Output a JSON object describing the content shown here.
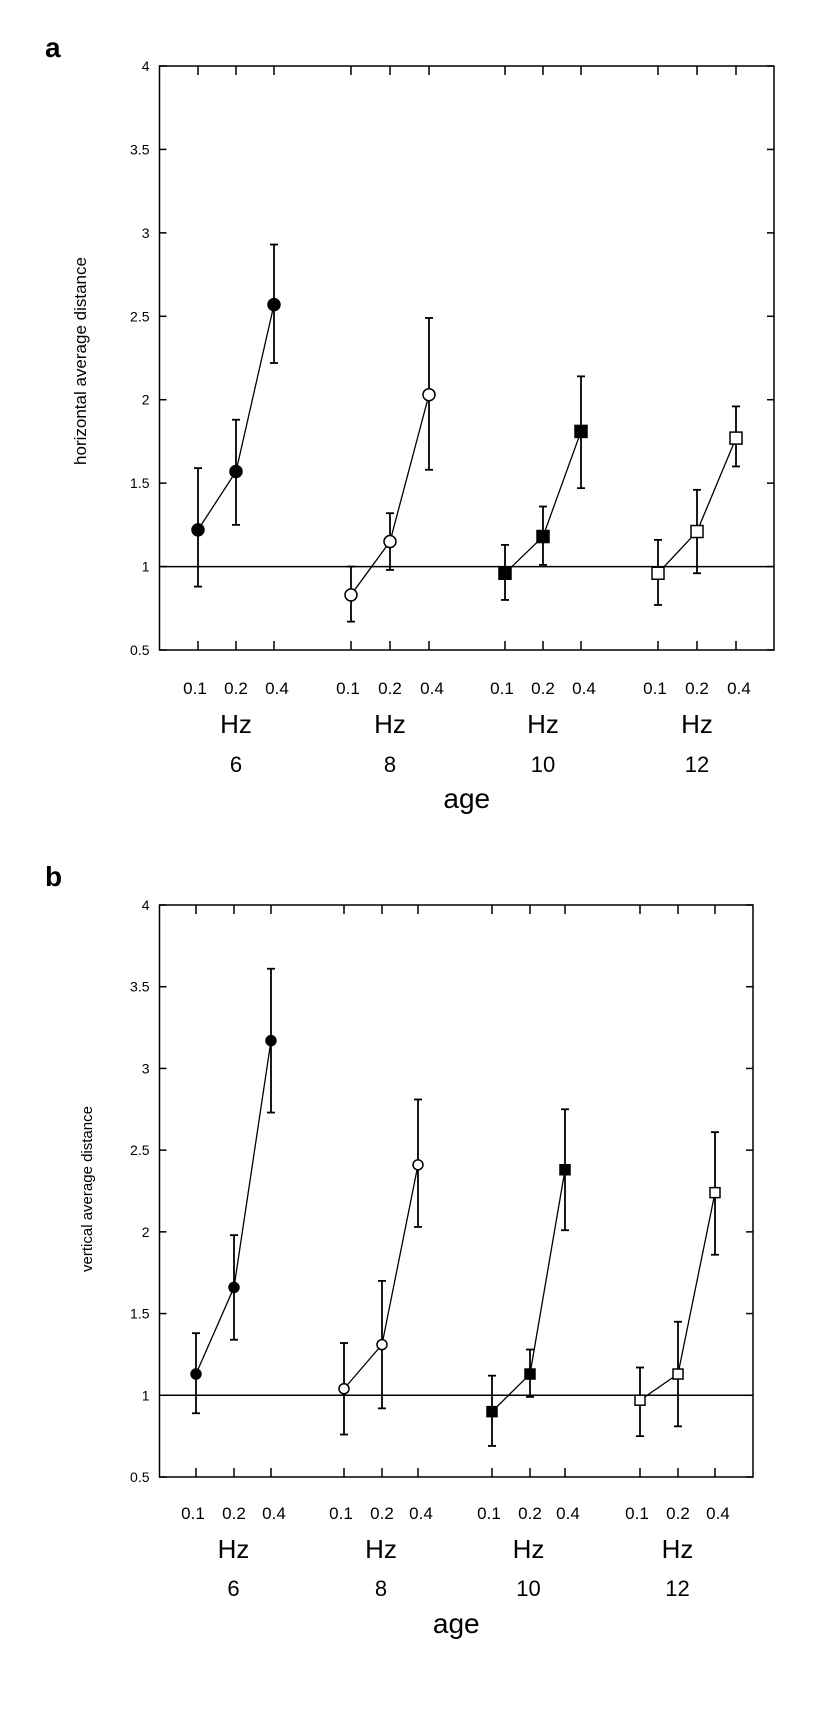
{
  "chart_data": [
    {
      "type": "scatter",
      "panel_label": "a",
      "ylabel": "horizontal average distance",
      "xlabel": "age",
      "ylim": [
        0.5,
        4
      ],
      "yticks": [
        "0.5",
        "1",
        "1.5",
        "2",
        "2.5",
        "3",
        "3.5",
        "4"
      ],
      "reference_line": 1,
      "grid": false,
      "freq_labels": [
        "0.1",
        "0.2",
        "0.4"
      ],
      "unit_label": "Hz",
      "groups": [
        {
          "age": "6",
          "marker": "filled-circle",
          "values": [
            1.22,
            1.57,
            2.57
          ],
          "err_low": [
            0.88,
            1.25,
            2.22
          ],
          "err_high": [
            1.59,
            1.88,
            2.93
          ]
        },
        {
          "age": "8",
          "marker": "open-circle",
          "values": [
            0.83,
            1.15,
            2.03
          ],
          "err_low": [
            0.67,
            0.98,
            1.58
          ],
          "err_high": [
            1.0,
            1.32,
            2.49
          ]
        },
        {
          "age": "10",
          "marker": "filled-square",
          "values": [
            0.96,
            1.18,
            1.81
          ],
          "err_low": [
            0.8,
            1.01,
            1.47
          ],
          "err_high": [
            1.13,
            1.36,
            2.14
          ]
        },
        {
          "age": "12",
          "marker": "open-square",
          "values": [
            0.96,
            1.21,
            1.77
          ],
          "err_low": [
            0.77,
            0.96,
            1.6
          ],
          "err_high": [
            1.16,
            1.46,
            1.96
          ]
        }
      ]
    },
    {
      "type": "scatter",
      "panel_label": "b",
      "ylabel": "vertical average distance",
      "xlabel": "age",
      "ylim": [
        0.5,
        4
      ],
      "yticks": [
        "0.5",
        "1",
        "1.5",
        "2",
        "2.5",
        "3",
        "3.5",
        "4"
      ],
      "reference_line": 1,
      "grid": false,
      "freq_labels": [
        "0.1",
        "0.2",
        "0.4"
      ],
      "unit_label": "Hz",
      "groups": [
        {
          "age": "6",
          "marker": "filled-circle",
          "values": [
            1.13,
            1.66,
            3.17
          ],
          "err_low": [
            0.89,
            1.34,
            2.73
          ],
          "err_high": [
            1.38,
            1.98,
            3.61
          ]
        },
        {
          "age": "8",
          "marker": "open-circle",
          "values": [
            1.04,
            1.31,
            2.41
          ],
          "err_low": [
            0.76,
            0.92,
            2.03
          ],
          "err_high": [
            1.32,
            1.7,
            2.81
          ]
        },
        {
          "age": "10",
          "marker": "filled-square",
          "values": [
            0.9,
            1.13,
            2.38
          ],
          "err_low": [
            0.69,
            0.99,
            2.01
          ],
          "err_high": [
            1.12,
            1.28,
            2.75
          ]
        },
        {
          "age": "12",
          "marker": "open-square",
          "values": [
            0.97,
            1.13,
            2.24
          ],
          "err_low": [
            0.75,
            0.81,
            1.86
          ],
          "err_high": [
            1.17,
            1.45,
            2.61
          ]
        }
      ]
    }
  ]
}
